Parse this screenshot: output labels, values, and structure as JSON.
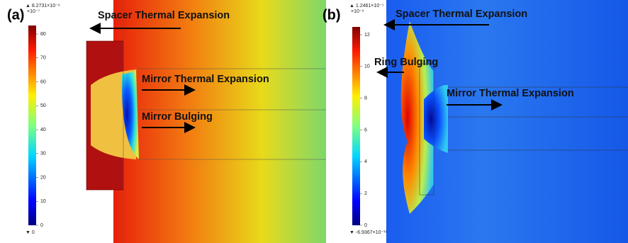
{
  "panels": [
    {
      "label": "(a)",
      "colorbar": {
        "max_label": "▲ 8.2731×10⁻⁶",
        "multiplier": "×10⁻⁷",
        "min_label": "▼ 0",
        "ticks": [
          0,
          10,
          20,
          30,
          40,
          50,
          60,
          70,
          80
        ]
      },
      "annotations": [
        "Spacer Thermal Expansion",
        "Mirror Thermal Expansion",
        "Mirror Bulging"
      ]
    },
    {
      "label": "(b)",
      "colorbar": {
        "max_label": "▲ 1.2461×10⁻⁵",
        "multiplier": "×10⁻⁶",
        "min_label": "▼ -6.9367×10⁻¹⁶",
        "ticks": [
          0,
          2,
          4,
          6,
          8,
          10,
          12
        ]
      },
      "annotations": [
        "Spacer Thermal Expansion",
        "Ring Bulging",
        "Mirror Thermal Expansion"
      ]
    }
  ]
}
